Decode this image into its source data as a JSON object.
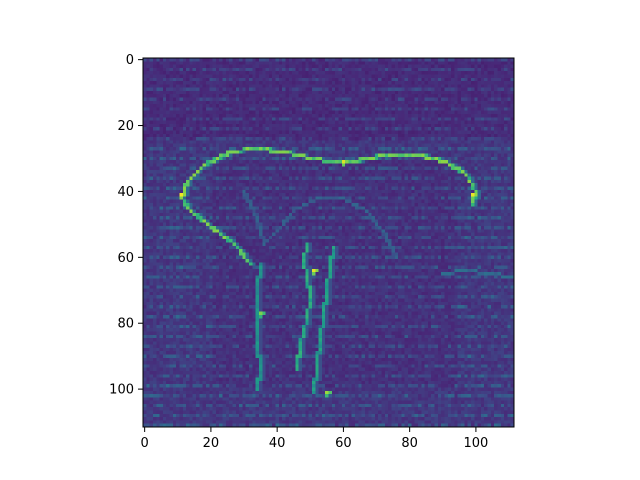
{
  "chart_data": {
    "type": "heatmap",
    "title": "",
    "xlabel": "",
    "ylabel": "",
    "colormap": "viridis",
    "grid": false,
    "x_range": [
      -0.5,
      111.5
    ],
    "y_range": [
      111.5,
      -0.5
    ],
    "x_ticks": [
      0,
      20,
      40,
      60,
      80,
      100
    ],
    "y_ticks": [
      0,
      20,
      40,
      60,
      80,
      100
    ],
    "x_tick_labels": [
      "0",
      "20",
      "40",
      "60",
      "80",
      "100"
    ],
    "y_tick_labels": [
      "0",
      "20",
      "40",
      "60",
      "80",
      "100"
    ],
    "image_size": [
      112,
      112
    ],
    "value_range": [
      0,
      1
    ],
    "background_level": 0.12,
    "edge_traces": [
      {
        "name": "ear-outline",
        "intensity": 0.75,
        "points": [
          [
            32,
            62
          ],
          [
            27,
            56
          ],
          [
            19,
            50
          ],
          [
            14,
            46
          ],
          [
            11,
            42
          ],
          [
            13,
            37
          ],
          [
            18,
            32
          ],
          [
            26,
            28
          ],
          [
            33,
            27
          ],
          [
            43,
            28
          ],
          [
            50,
            30
          ],
          [
            57,
            31
          ],
          [
            63,
            31
          ],
          [
            72,
            29
          ],
          [
            83,
            29
          ],
          [
            91,
            31
          ],
          [
            97,
            35
          ],
          [
            100,
            40
          ],
          [
            99,
            44
          ]
        ]
      },
      {
        "name": "trunk-edge",
        "intensity": 0.6,
        "points": [
          [
            49,
            56
          ],
          [
            48,
            61
          ],
          [
            49,
            66
          ],
          [
            50,
            72
          ],
          [
            49,
            79
          ],
          [
            47,
            86
          ],
          [
            46,
            94
          ]
        ]
      },
      {
        "name": "trunk-edge-2",
        "intensity": 0.55,
        "points": [
          [
            57,
            57
          ],
          [
            56,
            63
          ],
          [
            55,
            70
          ],
          [
            54,
            78
          ],
          [
            53,
            85
          ],
          [
            52,
            93
          ],
          [
            51,
            101
          ]
        ]
      },
      {
        "name": "leg-left",
        "intensity": 0.5,
        "points": [
          [
            35,
            62
          ],
          [
            34,
            70
          ],
          [
            34,
            78
          ],
          [
            34,
            86
          ],
          [
            35,
            94
          ],
          [
            34,
            100
          ]
        ]
      },
      {
        "name": "horizon",
        "intensity": 0.35,
        "points": [
          [
            90,
            65
          ],
          [
            97,
            64
          ],
          [
            104,
            65
          ],
          [
            111,
            66
          ]
        ]
      },
      {
        "name": "head-contour",
        "intensity": 0.3,
        "points": [
          [
            30,
            40
          ],
          [
            34,
            48
          ],
          [
            36,
            56
          ],
          [
            40,
            52
          ],
          [
            45,
            46
          ],
          [
            52,
            42
          ],
          [
            60,
            42
          ],
          [
            67,
            46
          ],
          [
            72,
            52
          ],
          [
            76,
            60
          ]
        ]
      }
    ],
    "hotspots": [
      {
        "x": 11,
        "y": 41,
        "value": 0.98
      },
      {
        "x": 60,
        "y": 31,
        "value": 0.95
      },
      {
        "x": 99,
        "y": 41,
        "value": 0.97
      },
      {
        "x": 51,
        "y": 64,
        "value": 0.96
      },
      {
        "x": 35,
        "y": 77,
        "value": 0.8
      },
      {
        "x": 55,
        "y": 101,
        "value": 0.85
      }
    ]
  }
}
